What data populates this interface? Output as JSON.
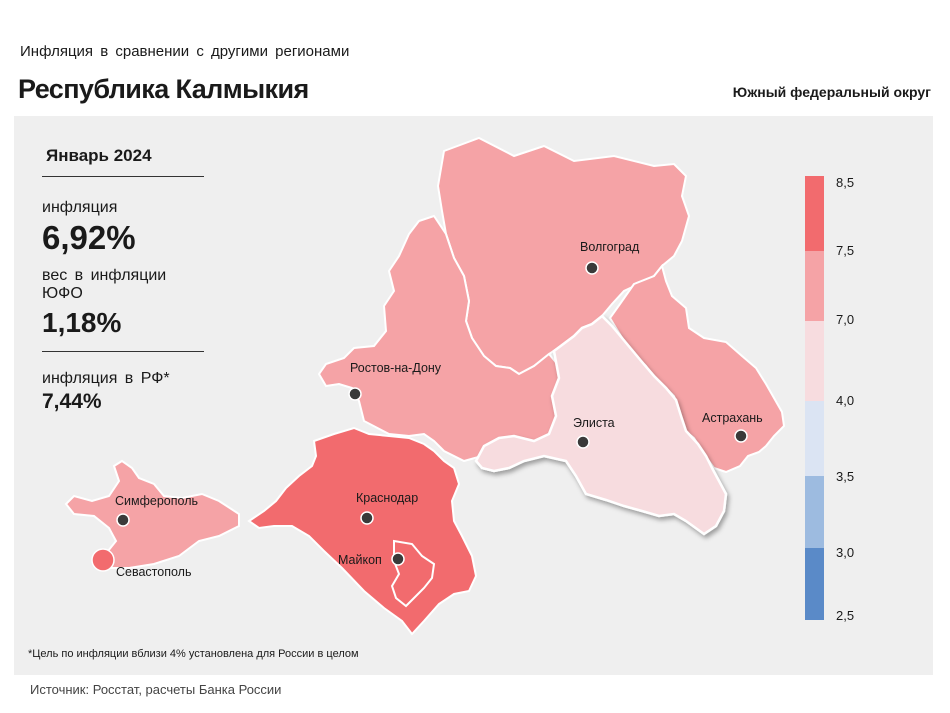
{
  "header": {
    "subtitle": "Инфляция в сравнении с другими регионами",
    "title": "Республика Калмыкия",
    "district": "Южный федеральный округ"
  },
  "stats": {
    "period": "Январь 2024",
    "inflation_label": "инфляция",
    "inflation_value": "6,92%",
    "weight_label": "вес в инфляции ЮФО",
    "weight_value": "1,18%",
    "rf_label": "инфляция в РФ*",
    "rf_value": "7,44%"
  },
  "map": {
    "cities": [
      "Волгоград",
      "Ростов-на-Дону",
      "Элиста",
      "Астрахань",
      "Краснодар",
      "Майкоп",
      "Симферополь",
      "Севастополь"
    ],
    "regions": [
      {
        "name": "Волгоградская область",
        "color": "#f5a3a6"
      },
      {
        "name": "Ростовская область",
        "color": "#f5a3a6"
      },
      {
        "name": "Республика Калмыкия",
        "color": "#f7dcdf",
        "highlighted": true
      },
      {
        "name": "Астраханская область",
        "color": "#f5a3a6"
      },
      {
        "name": "Краснодарский край",
        "color": "#f26b6e"
      },
      {
        "name": "Республика Адыгея",
        "color": "#f26b6e"
      },
      {
        "name": "Республика Крым",
        "color": "#f5a3a6"
      },
      {
        "name": "Севастополь",
        "color": "#f26b6e"
      }
    ]
  },
  "legend": {
    "ticks": [
      "8,5",
      "7,5",
      "7,0",
      "4,0",
      "3,5",
      "3,0",
      "2,5"
    ],
    "colors": [
      "#f26b6e",
      "#f5a3a6",
      "#f7dcdf",
      "#dbe4f3",
      "#9dbbe0",
      "#5a8ac8"
    ]
  },
  "footnote": "*Цель по инфляции вблизи 4% установлена для России в целом",
  "source": "Источник: Росстат, расчеты Банка России"
}
